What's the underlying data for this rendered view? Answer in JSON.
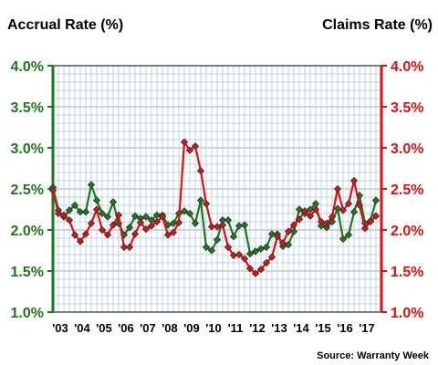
{
  "chart_data": {
    "type": "line",
    "title_left": "Accrual Rate (%)",
    "title_right": "Claims Rate (%)",
    "source": "Source: Warranty Week",
    "colors": {
      "accrual": "#1a7a1a",
      "claims": "#dd1111"
    },
    "ylim": [
      1.0,
      4.0
    ],
    "y_ticks": [
      "1.0%",
      "1.5%",
      "2.0%",
      "2.5%",
      "3.0%",
      "3.5%",
      "4.0%"
    ],
    "x_start": 2003.0,
    "x_end": 2018.0,
    "x_ticks": [
      "'03",
      "'04",
      "'05",
      "'06",
      "'07",
      "'08",
      "'09",
      "'10",
      "'11",
      "'12",
      "'13",
      "'14",
      "'15",
      "'16",
      "'17"
    ],
    "grid": true,
    "series": [
      {
        "name": "Accrual Rate (%)",
        "axis": "left",
        "x": [
          2003.0,
          2003.25,
          2003.5,
          2003.75,
          2004.0,
          2004.25,
          2004.5,
          2004.75,
          2005.0,
          2005.25,
          2005.5,
          2005.75,
          2006.0,
          2006.25,
          2006.5,
          2006.75,
          2007.0,
          2007.25,
          2007.5,
          2007.75,
          2008.0,
          2008.25,
          2008.5,
          2008.75,
          2009.0,
          2009.25,
          2009.5,
          2009.75,
          2010.0,
          2010.25,
          2010.5,
          2010.75,
          2011.0,
          2011.25,
          2011.5,
          2011.75,
          2012.0,
          2012.25,
          2012.5,
          2012.75,
          2013.0,
          2013.25,
          2013.5,
          2013.75,
          2014.0,
          2014.25,
          2014.5,
          2014.75,
          2015.0,
          2015.25,
          2015.5,
          2015.75,
          2016.0,
          2016.25,
          2016.5,
          2016.75,
          2017.0,
          2017.25,
          2017.5,
          2017.75
        ],
        "values": [
          2.52,
          2.24,
          2.16,
          2.24,
          2.3,
          2.22,
          2.22,
          2.55,
          2.36,
          2.2,
          2.16,
          2.34,
          2.08,
          1.94,
          2.03,
          2.17,
          2.14,
          2.16,
          2.12,
          2.18,
          2.18,
          2.06,
          2.08,
          2.2,
          2.23,
          2.2,
          2.08,
          2.36,
          1.79,
          1.75,
          1.88,
          2.12,
          2.12,
          1.92,
          2.05,
          2.06,
          1.71,
          1.74,
          1.77,
          1.79,
          1.95,
          1.95,
          1.8,
          1.82,
          1.98,
          2.25,
          2.2,
          2.25,
          2.32,
          2.05,
          2.03,
          2.1,
          2.26,
          1.89,
          1.94,
          2.22,
          2.42,
          2.08,
          2.11,
          2.36
        ]
      },
      {
        "name": "Claims Rate (%)",
        "axis": "right",
        "x": [
          2003.0,
          2003.25,
          2003.5,
          2003.75,
          2004.0,
          2004.25,
          2004.5,
          2004.75,
          2005.0,
          2005.25,
          2005.5,
          2005.75,
          2006.0,
          2006.25,
          2006.5,
          2006.75,
          2007.0,
          2007.25,
          2007.5,
          2007.75,
          2008.0,
          2008.25,
          2008.5,
          2008.75,
          2009.0,
          2009.25,
          2009.5,
          2009.75,
          2010.0,
          2010.25,
          2010.5,
          2010.75,
          2011.0,
          2011.25,
          2011.5,
          2011.75,
          2012.0,
          2012.25,
          2012.5,
          2012.75,
          2013.0,
          2013.25,
          2013.5,
          2013.75,
          2014.0,
          2014.25,
          2014.5,
          2014.75,
          2015.0,
          2015.25,
          2015.5,
          2015.75,
          2016.0,
          2016.25,
          2016.5,
          2016.75,
          2017.0,
          2017.25,
          2017.5,
          2017.75
        ],
        "values": [
          2.48,
          2.2,
          2.18,
          2.12,
          1.94,
          1.86,
          1.95,
          2.08,
          2.25,
          2.0,
          1.94,
          2.06,
          2.18,
          1.79,
          1.79,
          1.95,
          2.09,
          2.01,
          2.05,
          2.1,
          2.16,
          1.94,
          1.97,
          2.09,
          3.07,
          2.97,
          3.02,
          2.72,
          2.32,
          2.04,
          2.04,
          2.06,
          1.79,
          1.69,
          1.7,
          1.65,
          1.53,
          1.47,
          1.52,
          1.6,
          1.67,
          1.92,
          1.84,
          1.98,
          2.06,
          2.13,
          2.23,
          2.17,
          2.25,
          2.1,
          2.08,
          2.16,
          2.5,
          2.24,
          2.32,
          2.6,
          2.3,
          2.02,
          2.1,
          2.17
        ]
      }
    ]
  }
}
